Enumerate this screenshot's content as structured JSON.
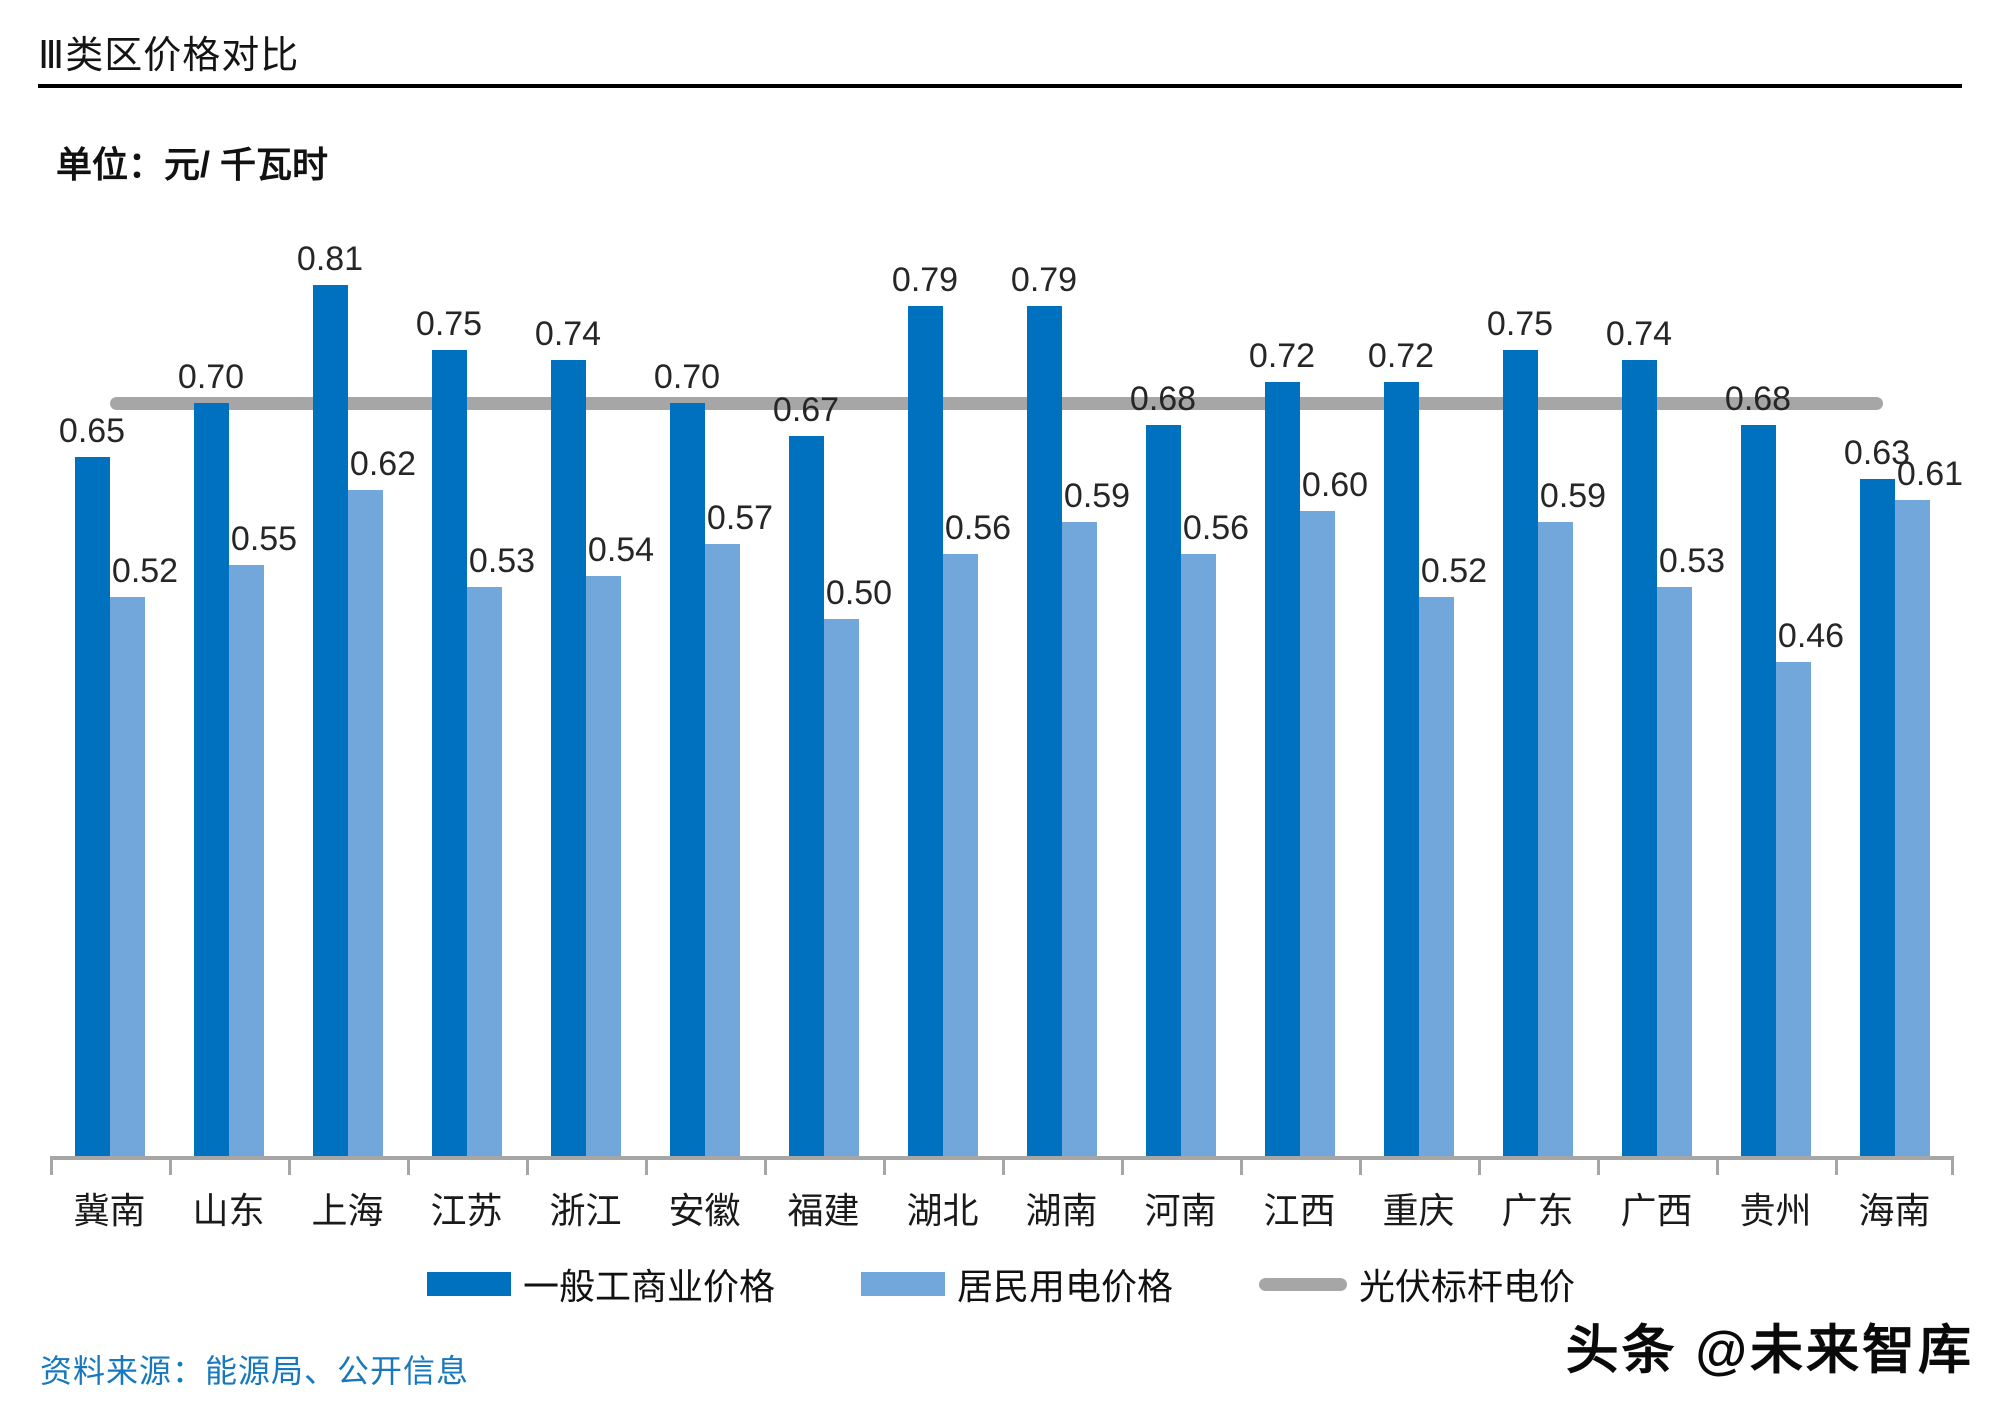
{
  "header": {
    "title": "Ⅲ类区价格对比",
    "unit": "单位：元/ 千瓦时"
  },
  "chart_data": {
    "type": "bar",
    "categories": [
      "冀南",
      "山东",
      "上海",
      "江苏",
      "浙江",
      "安徽",
      "福建",
      "湖北",
      "湖南",
      "河南",
      "江西",
      "重庆",
      "广东",
      "广西",
      "贵州",
      "海南"
    ],
    "series": [
      {
        "name": "一般工商业价格",
        "color": "#0071be",
        "values": [
          0.65,
          0.7,
          0.81,
          0.75,
          0.74,
          0.7,
          0.67,
          0.79,
          0.79,
          0.68,
          0.72,
          0.72,
          0.75,
          0.74,
          0.68,
          0.63
        ]
      },
      {
        "name": "居民用电价格",
        "color": "#72a7db",
        "values": [
          0.52,
          0.55,
          0.62,
          0.53,
          0.54,
          0.57,
          0.5,
          0.56,
          0.59,
          0.56,
          0.6,
          0.52,
          0.59,
          0.53,
          0.46,
          0.61
        ]
      }
    ],
    "benchmark_line": {
      "name": "光伏标杆电价",
      "value": 0.7,
      "color": "#a6a6a6"
    },
    "title": "Ⅲ类区价格对比",
    "ylabel": "元/千瓦时",
    "ylim": [
      0,
      0.9
    ],
    "grid": false,
    "value_labels": true,
    "value_label_format": "0.00",
    "legend_position": "bottom"
  },
  "legend": {
    "items": [
      {
        "label": "一般工商业价格",
        "color": "#0071be",
        "type": "rect"
      },
      {
        "label": "居民用电价格",
        "color": "#72a7db",
        "type": "rect"
      },
      {
        "label": "光伏标杆电价",
        "color": "#a6a6a6",
        "type": "line"
      }
    ]
  },
  "footer": {
    "source": "资料来源：能源局、公开信息",
    "watermark": "头条 @未来智库"
  }
}
